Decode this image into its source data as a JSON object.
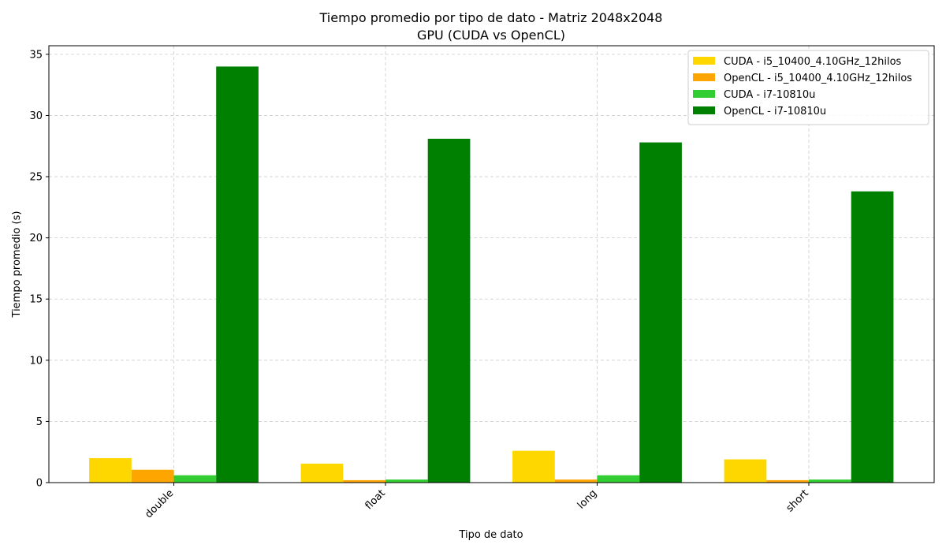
{
  "chart_data": {
    "type": "bar",
    "title": "Tiempo promedio por tipo de dato - Matriz 2048x2048",
    "subtitle": "GPU (CUDA vs OpenCL)",
    "xlabel": "Tipo de dato",
    "ylabel": "Tiempo promedio (s)",
    "categories": [
      "double",
      "float",
      "long",
      "short"
    ],
    "ylim": [
      0,
      35.7
    ],
    "yticks": [
      0,
      5,
      10,
      15,
      20,
      25,
      30,
      35
    ],
    "grid": true,
    "legend_position": "top-right",
    "series": [
      {
        "name": "CUDA - i5_10400_4.10GHz_12hilos",
        "color": "#FFD700",
        "values": [
          2.0,
          1.55,
          2.6,
          1.9
        ]
      },
      {
        "name": "OpenCL - i5_10400_4.10GHz_12hilos",
        "color": "#FFA500",
        "values": [
          1.05,
          0.2,
          0.25,
          0.2
        ]
      },
      {
        "name": "CUDA - i7-10810u",
        "color": "#32CD32",
        "values": [
          0.6,
          0.25,
          0.6,
          0.25
        ]
      },
      {
        "name": "OpenCL - i7-10810u",
        "color": "#008000",
        "values": [
          34.0,
          28.1,
          27.8,
          23.8
        ]
      }
    ]
  }
}
